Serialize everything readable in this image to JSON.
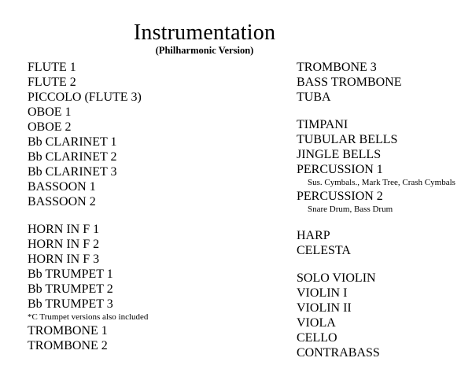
{
  "page": {
    "title": "Instrumentation",
    "subtitle": "(Philharmonic Version)"
  },
  "colors": {
    "background": "#ffffff",
    "text": "#000000"
  },
  "columns": {
    "left": {
      "lines": [
        {
          "kind": "item",
          "text": "FLUTE 1"
        },
        {
          "kind": "item",
          "text": "FLUTE 2"
        },
        {
          "kind": "item",
          "text": "PICCOLO (FLUTE 3)"
        },
        {
          "kind": "item",
          "text": "OBOE 1"
        },
        {
          "kind": "item",
          "text": "OBOE 2"
        },
        {
          "kind": "item",
          "text": "Bb CLARINET 1"
        },
        {
          "kind": "item",
          "text": "Bb CLARINET 2"
        },
        {
          "kind": "item",
          "text": "Bb CLARINET 3"
        },
        {
          "kind": "item",
          "text": "BASSOON 1"
        },
        {
          "kind": "item",
          "text": "BASSOON 2"
        },
        {
          "kind": "spacer",
          "text": ""
        },
        {
          "kind": "item",
          "text": "HORN IN F 1"
        },
        {
          "kind": "item",
          "text": "HORN IN F 2"
        },
        {
          "kind": "item",
          "text": "HORN IN F 3"
        },
        {
          "kind": "item",
          "text": "Bb TRUMPET 1"
        },
        {
          "kind": "item",
          "text": "Bb TRUMPET 2"
        },
        {
          "kind": "item",
          "text": "Bb TRUMPET 3"
        },
        {
          "kind": "note",
          "text": "*C Trumpet versions also included",
          "indent": false
        },
        {
          "kind": "item",
          "text": "TROMBONE 1"
        },
        {
          "kind": "item",
          "text": "TROMBONE 2"
        }
      ]
    },
    "right": {
      "lines": [
        {
          "kind": "item",
          "text": "TROMBONE 3"
        },
        {
          "kind": "item",
          "text": "BASS TROMBONE"
        },
        {
          "kind": "item",
          "text": "TUBA"
        },
        {
          "kind": "spacer",
          "text": ""
        },
        {
          "kind": "item",
          "text": "TIMPANI"
        },
        {
          "kind": "item",
          "text": "TUBULAR BELLS"
        },
        {
          "kind": "item",
          "text": "JINGLE BELLS"
        },
        {
          "kind": "item",
          "text": "PERCUSSION 1"
        },
        {
          "kind": "note",
          "text": "Sus. Cymbals., Mark Tree, Crash Cymbals",
          "indent": true
        },
        {
          "kind": "item",
          "text": "PERCUSSION 2"
        },
        {
          "kind": "note",
          "text": "Snare Drum, Bass Drum",
          "indent": true
        },
        {
          "kind": "spacer",
          "text": ""
        },
        {
          "kind": "item",
          "text": "HARP"
        },
        {
          "kind": "item",
          "text": "CELESTA"
        },
        {
          "kind": "spacer",
          "text": ""
        },
        {
          "kind": "item",
          "text": "SOLO VIOLIN"
        },
        {
          "kind": "item",
          "text": "VIOLIN I"
        },
        {
          "kind": "item",
          "text": "VIOLIN II"
        },
        {
          "kind": "item",
          "text": "VIOLA"
        },
        {
          "kind": "item",
          "text": "CELLO"
        },
        {
          "kind": "item",
          "text": "CONTRABASS"
        }
      ]
    }
  }
}
